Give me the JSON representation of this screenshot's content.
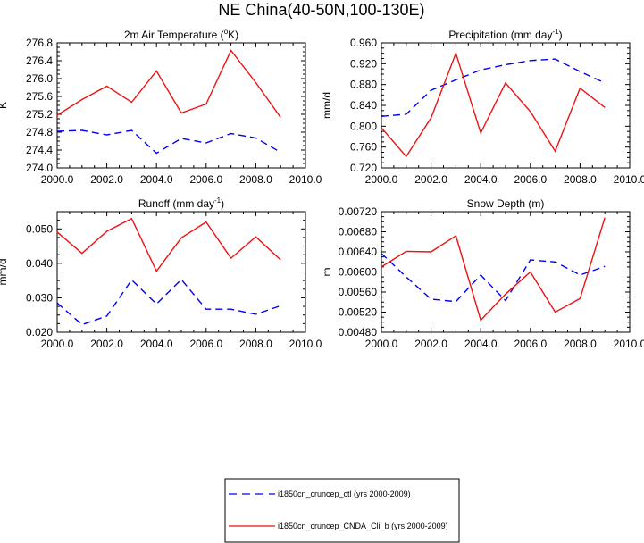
{
  "main_title": "NE China(40-50N,100-130E)",
  "colors": {
    "ctl": "#0000ee",
    "cnda": "#ee1111",
    "axis": "#000000"
  },
  "legend": {
    "entries": [
      {
        "label": "i1850cn_cruncep_ctl (yrs 2000-2009)",
        "series": "ctl"
      },
      {
        "label": "i1850cn_cruncep_CNDA_Cli_b (yrs 2000-2009)",
        "series": "cnda"
      }
    ]
  },
  "chart_data": [
    {
      "type": "line",
      "title": "2m Air Temperature (",
      "title_sup": "o",
      "title_end": "K)",
      "xlabel": "",
      "ylabel": "K",
      "xlim": [
        2000,
        2010
      ],
      "ylim": [
        274.0,
        276.8
      ],
      "xticks": [
        2000,
        2002,
        2004,
        2006,
        2008,
        2010
      ],
      "xtick_labels": [
        "2000.0",
        "2002.0",
        "2004.0",
        "2006.0",
        "2008.0",
        "2010.0"
      ],
      "yticks": [
        274.0,
        274.4,
        274.8,
        275.2,
        275.6,
        276.0,
        276.4,
        276.8
      ],
      "ytick_labels": [
        "274.0",
        "274.4",
        "274.8",
        "275.2",
        "275.6",
        "276.0",
        "276.4",
        "276.8"
      ],
      "x": [
        2000,
        2001,
        2002,
        2003,
        2004,
        2005,
        2006,
        2007,
        2008,
        2009
      ],
      "series": [
        {
          "key": "ctl",
          "style": "dashed",
          "values": [
            274.82,
            274.84,
            274.74,
            274.84,
            274.33,
            274.66,
            274.56,
            274.77,
            274.67,
            274.35
          ]
        },
        {
          "key": "cnda",
          "style": "solid",
          "values": [
            275.18,
            275.53,
            275.83,
            275.47,
            276.17,
            275.23,
            275.43,
            276.63,
            275.91,
            275.13
          ]
        }
      ]
    },
    {
      "type": "line",
      "title": "Precipitation (mm day",
      "title_sup": "-1",
      "title_end": ")",
      "xlabel": "",
      "ylabel": "mm/d",
      "xlim": [
        2000,
        2010
      ],
      "ylim": [
        0.72,
        0.96
      ],
      "xticks": [
        2000,
        2002,
        2004,
        2006,
        2008,
        2010
      ],
      "xtick_labels": [
        "2000.0",
        "2002.0",
        "2004.0",
        "2006.0",
        "2008.0",
        "2010.0"
      ],
      "yticks": [
        0.72,
        0.76,
        0.8,
        0.84,
        0.88,
        0.92,
        0.96
      ],
      "ytick_labels": [
        "0.720",
        "0.760",
        "0.800",
        "0.840",
        "0.880",
        "0.920",
        "0.960"
      ],
      "x": [
        2000,
        2001,
        2002,
        2003,
        2004,
        2005,
        2006,
        2007,
        2008,
        2009
      ],
      "series": [
        {
          "key": "ctl",
          "style": "dashed",
          "values": [
            0.819,
            0.823,
            0.869,
            0.889,
            0.908,
            0.918,
            0.926,
            0.929,
            0.905,
            0.883
          ]
        },
        {
          "key": "cnda",
          "style": "solid",
          "values": [
            0.797,
            0.742,
            0.816,
            0.94,
            0.787,
            0.883,
            0.828,
            0.752,
            0.873,
            0.836
          ]
        }
      ]
    },
    {
      "type": "line",
      "title": "Runoff (mm day",
      "title_sup": "-1",
      "title_end": ")",
      "xlabel": "",
      "ylabel": "mm/d",
      "xlim": [
        2000,
        2010
      ],
      "ylim": [
        0.02,
        0.055
      ],
      "xticks": [
        2000,
        2002,
        2004,
        2006,
        2008,
        2010
      ],
      "xtick_labels": [
        "2000.0",
        "2002.0",
        "2004.0",
        "2006.0",
        "2008.0",
        "2010.0"
      ],
      "yticks": [
        0.02,
        0.03,
        0.04,
        0.05
      ],
      "ytick_labels": [
        "0.020",
        "0.030",
        "0.040",
        "0.050"
      ],
      "x": [
        2000,
        2001,
        2002,
        2003,
        2004,
        2005,
        2006,
        2007,
        2008,
        2009
      ],
      "series": [
        {
          "key": "ctl",
          "style": "dashed",
          "values": [
            0.0285,
            0.0222,
            0.0247,
            0.0352,
            0.0282,
            0.0353,
            0.0267,
            0.0267,
            0.0252,
            0.0277
          ]
        },
        {
          "key": "cnda",
          "style": "solid",
          "values": [
            0.0491,
            0.0429,
            0.0493,
            0.053,
            0.0377,
            0.0474,
            0.052,
            0.0415,
            0.0477,
            0.041
          ]
        }
      ]
    },
    {
      "type": "line",
      "title": "Snow Depth (m)",
      "title_sup": "",
      "title_end": "",
      "xlabel": "",
      "ylabel": "m",
      "xlim": [
        2000,
        2010
      ],
      "ylim": [
        0.0048,
        0.0072
      ],
      "xticks": [
        2000,
        2002,
        2004,
        2006,
        2008,
        2010
      ],
      "xtick_labels": [
        "2000.0",
        "2002.0",
        "2004.0",
        "2006.0",
        "2008.0",
        "2010.0"
      ],
      "yticks": [
        0.0048,
        0.0052,
        0.0056,
        0.006,
        0.0064,
        0.0068,
        0.0072
      ],
      "ytick_labels": [
        "0.00480",
        "0.00520",
        "0.00560",
        "0.00600",
        "0.00640",
        "0.00680",
        "0.00720"
      ],
      "x": [
        2000,
        2001,
        2002,
        2003,
        2004,
        2005,
        2006,
        2007,
        2008,
        2009
      ],
      "series": [
        {
          "key": "ctl",
          "style": "dashed",
          "values": [
            0.00637,
            0.0059,
            0.00546,
            0.00541,
            0.00594,
            0.00543,
            0.00624,
            0.0062,
            0.00594,
            0.00611
          ]
        },
        {
          "key": "cnda",
          "style": "solid",
          "values": [
            0.0061,
            0.00641,
            0.0064,
            0.00672,
            0.00504,
            0.00556,
            0.006,
            0.0052,
            0.00547,
            0.00708
          ]
        }
      ]
    }
  ]
}
